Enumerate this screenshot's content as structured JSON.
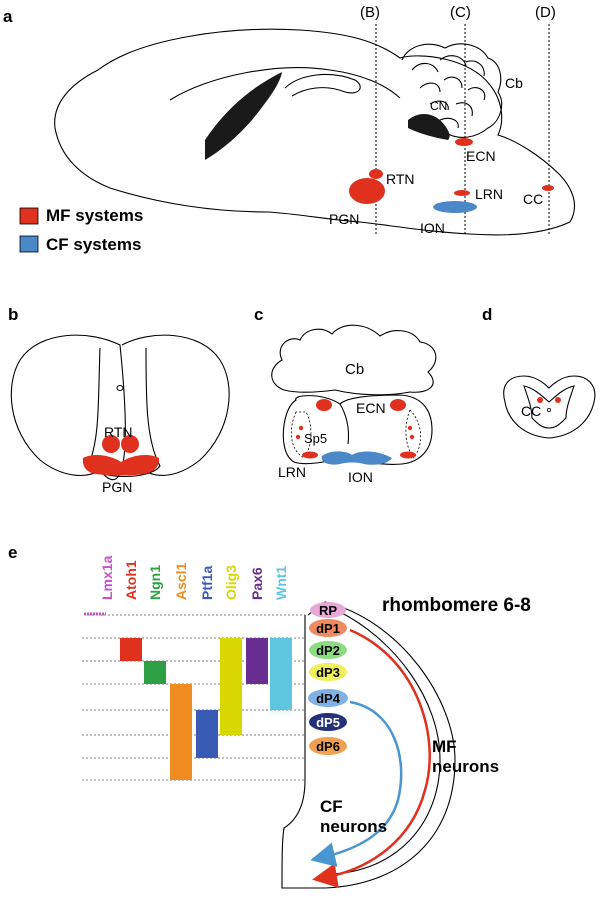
{
  "colors": {
    "mf": "#e0311f",
    "cf": "#4a88c8",
    "mf_text": "#e0311f",
    "cf_text": "#2e3d9a"
  },
  "panel_a": {
    "label": "a",
    "sections": [
      "(B)",
      "(C)",
      "(D)"
    ],
    "regions": {
      "cb": "Cb",
      "cn": "CN",
      "ecn": "ECN",
      "rtn": "RTN",
      "lrn": "LRN",
      "cc": "CC",
      "pgn": "PGN",
      "ion": "ION"
    },
    "legend": [
      {
        "label": "MF systems",
        "color": "#e0311f"
      },
      {
        "label": "CF systems",
        "color": "#4a88c8"
      }
    ]
  },
  "panel_b": {
    "label": "b",
    "rtn": "RTN",
    "pgn": "PGN"
  },
  "panel_c": {
    "label": "c",
    "cb": "Cb",
    "ecn": "ECN",
    "sp5": "Sp5",
    "lrn": "LRN",
    "ion": "ION"
  },
  "panel_d": {
    "label": "d",
    "cc": "CC"
  },
  "panel_e": {
    "label": "e",
    "title": "rhombomere 6-8",
    "genes": [
      {
        "name": "Lmx1a",
        "color": "#c455c8"
      },
      {
        "name": "Atoh1",
        "color": "#e0311f"
      },
      {
        "name": "Ngn1",
        "color": "#2ea043"
      },
      {
        "name": "Ascl1",
        "color": "#f08c20"
      },
      {
        "name": "Ptf1a",
        "color": "#3a5bb5"
      },
      {
        "name": "Olig3",
        "color": "#d8d800"
      },
      {
        "name": "Pax6",
        "color": "#6a2d91"
      },
      {
        "name": "Wnt1",
        "color": "#5fc6e0"
      }
    ],
    "domains": [
      {
        "name": "RP",
        "color": "#e8a8d8"
      },
      {
        "name": "dP1",
        "color": "#f08a60"
      },
      {
        "name": "dP2",
        "color": "#8ddc82"
      },
      {
        "name": "dP3",
        "color": "#f0f05a"
      },
      {
        "name": "dP4",
        "color": "#7fb2e2"
      },
      {
        "name": "dP5",
        "color": "#24307a"
      },
      {
        "name": "dP6",
        "color": "#f0a050"
      }
    ],
    "mf_label": [
      "MF",
      "neurons"
    ],
    "cf_label": [
      "CF",
      "neurons"
    ]
  }
}
